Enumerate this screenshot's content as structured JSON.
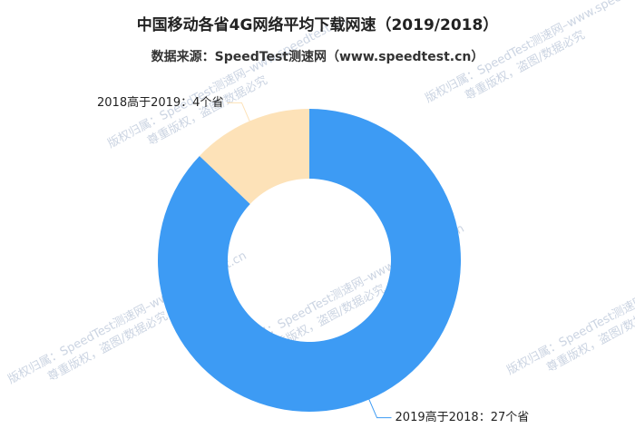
{
  "chart_data": {
    "type": "donut",
    "title": "中国移动各省4G网络平均下载网速（2019/2018）",
    "subtitle": "数据来源：SpeedTest测速网（www.speedtest.cn）",
    "values": [
      27,
      4
    ],
    "value_labels": [
      "2019高于2018：27个省",
      "2018高于2019：4个省"
    ],
    "colors": [
      "#3d9bf4",
      "#fde2b8"
    ]
  },
  "watermark": [
    "版权归属：SpeedTest测速网–www.speedtest.cn",
    "尊重版权，盗图/数据必究"
  ]
}
